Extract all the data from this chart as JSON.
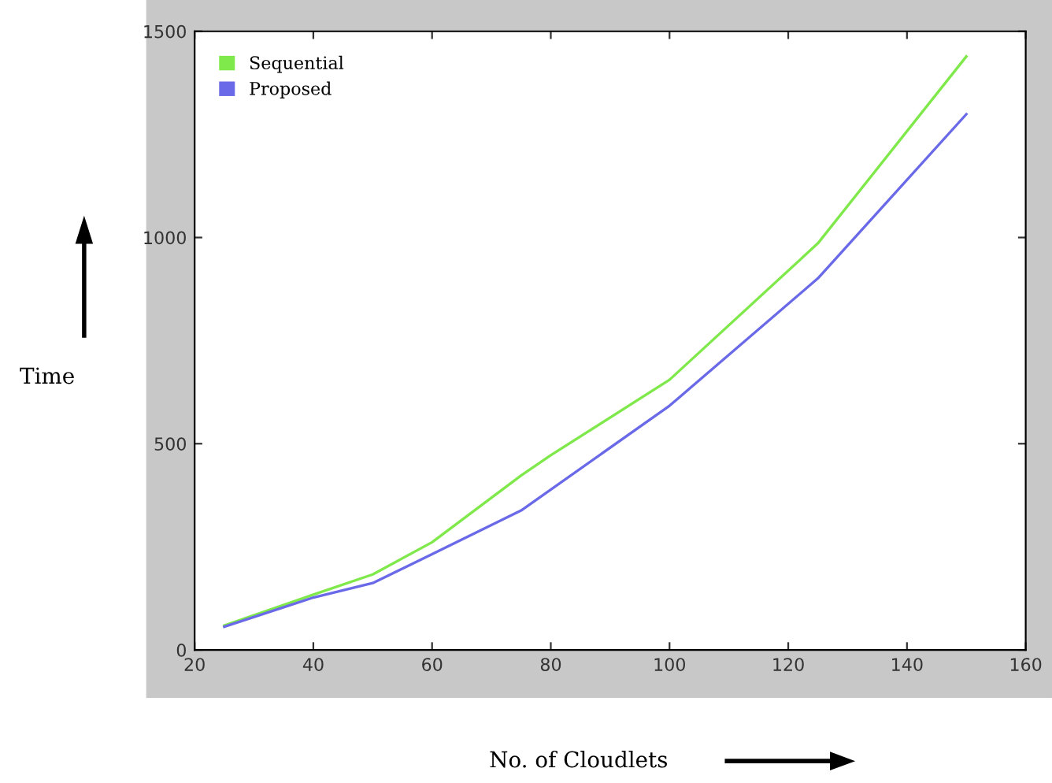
{
  "chart_data": {
    "type": "line",
    "xlabel": "No. of Cloudlets",
    "ylabel": "Time",
    "xlim": [
      20,
      160
    ],
    "xticks": [
      20,
      40,
      60,
      80,
      100,
      120,
      140,
      160
    ],
    "ylim": [
      0,
      1500
    ],
    "yticks": [
      0,
      500,
      1000,
      1500
    ],
    "legend": "top left",
    "grid": false,
    "series": [
      {
        "name": "Sequential",
        "color": "#7fe84a",
        "x": [
          25,
          40,
          50,
          60,
          75,
          80,
          100,
          125,
          150
        ],
        "values": [
          59,
          134,
          183,
          261,
          423,
          472,
          655,
          986,
          1439
        ]
      },
      {
        "name": "Proposed",
        "color": "#6a6ae8",
        "x": [
          25,
          40,
          50,
          60,
          75,
          100,
          125,
          150
        ],
        "values": [
          56,
          127,
          162,
          232,
          338,
          592,
          901,
          1299
        ]
      }
    ]
  }
}
